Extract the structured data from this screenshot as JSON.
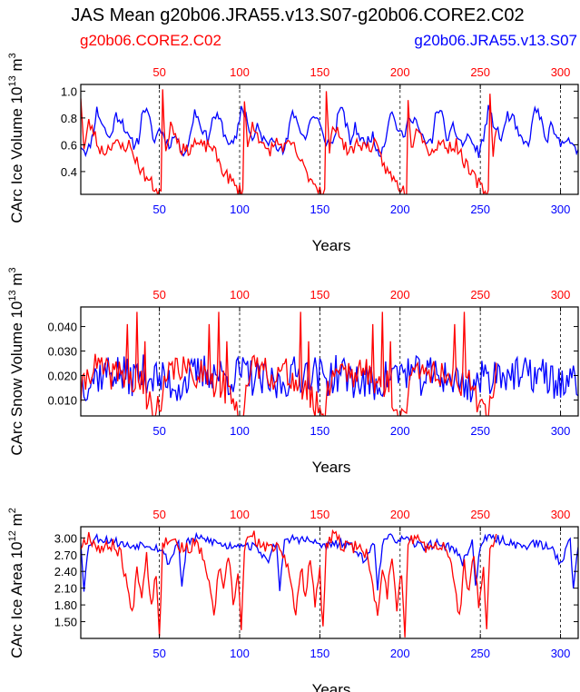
{
  "title": "JAS Mean g20b06.JRA55.v13.S07-g20b06.CORE2.C02",
  "legend": {
    "left": {
      "label": "g20b06.CORE2.C02",
      "color": "#ff0000"
    },
    "right": {
      "label": "g20b06.JRA55.v13.S07",
      "color": "#0000ff"
    }
  },
  "chart_data": [
    {
      "type": "line",
      "ylabel": "CArc Ice Volume",
      "ylabel_unit": "10",
      "ylabel_exp": "13",
      "ylabel_tail": "m",
      "ylabel_tail_exp": "3",
      "xlabel": "Years",
      "ylim": [
        0.23,
        1.05
      ],
      "yticks": [
        {
          "v": 0.4,
          "label": "0.4"
        },
        {
          "v": 0.6,
          "label": "0.6"
        },
        {
          "v": 0.8,
          "label": "0.8"
        },
        {
          "v": 1.0,
          "label": "1.0"
        }
      ],
      "xlim": [
        1,
        311
      ],
      "xticks": [
        {
          "v": 50,
          "label": "50"
        },
        {
          "v": 100,
          "label": "100"
        },
        {
          "v": 150,
          "label": "150"
        },
        {
          "v": 200,
          "label": "200"
        },
        {
          "v": 250,
          "label": "250"
        },
        {
          "v": 300,
          "label": "300"
        }
      ],
      "series": [
        {
          "name": "g20b06.JRA55.v13.S07",
          "color": "#0000ff",
          "period": 61,
          "length": 311,
          "anchors": [
            [
              0,
              0.6
            ],
            [
              4,
              0.54
            ],
            [
              7,
              0.65
            ],
            [
              10,
              0.86
            ],
            [
              14,
              0.74
            ],
            [
              18,
              0.64
            ],
            [
              22,
              0.82
            ],
            [
              26,
              0.78
            ],
            [
              29,
              0.66
            ],
            [
              33,
              0.6
            ],
            [
              36,
              0.64
            ],
            [
              39,
              0.88
            ],
            [
              42,
              0.82
            ],
            [
              46,
              0.62
            ],
            [
              49,
              0.73
            ],
            [
              52,
              0.66
            ],
            [
              55,
              0.6
            ],
            [
              58,
              0.66
            ]
          ],
          "noise": 0.04,
          "seed": 11
        },
        {
          "name": "g20b06.CORE2.C02",
          "color": "#ff0000",
          "period": 51,
          "length": 260,
          "anchors": [
            [
              0,
              0.97
            ],
            [
              2,
              0.56
            ],
            [
              5,
              0.76
            ],
            [
              8,
              0.7
            ],
            [
              11,
              0.58
            ],
            [
              15,
              0.55
            ],
            [
              20,
              0.62
            ],
            [
              25,
              0.58
            ],
            [
              30,
              0.6
            ],
            [
              34,
              0.5
            ],
            [
              38,
              0.4
            ],
            [
              42,
              0.34
            ],
            [
              46,
              0.28
            ],
            [
              49,
              0.25
            ]
          ],
          "noise": 0.05,
          "seed": 23
        }
      ]
    },
    {
      "type": "line",
      "ylabel": "CArc Snow Volume",
      "ylabel_unit": "10",
      "ylabel_exp": "13",
      "ylabel_tail": "m",
      "ylabel_tail_exp": "3",
      "xlabel": "Years",
      "ylim": [
        0.0035,
        0.048
      ],
      "yticks": [
        {
          "v": 0.01,
          "label": "0.010"
        },
        {
          "v": 0.02,
          "label": "0.020"
        },
        {
          "v": 0.03,
          "label": "0.030"
        },
        {
          "v": 0.04,
          "label": "0.040"
        }
      ],
      "xlim": [
        1,
        311
      ],
      "xticks": [
        {
          "v": 50,
          "label": "50"
        },
        {
          "v": 100,
          "label": "100"
        },
        {
          "v": 150,
          "label": "150"
        },
        {
          "v": 200,
          "label": "200"
        },
        {
          "v": 250,
          "label": "250"
        },
        {
          "v": 300,
          "label": "300"
        }
      ],
      "series": [
        {
          "name": "g20b06.JRA55.v13.S07",
          "color": "#0000ff",
          "period": 61,
          "length": 311,
          "anchors": [
            [
              0,
              0.016
            ],
            [
              10,
              0.02
            ],
            [
              20,
              0.022
            ],
            [
              30,
              0.019
            ],
            [
              40,
              0.021
            ],
            [
              50,
              0.018
            ],
            [
              60,
              0.016
            ]
          ],
          "noise": 0.008,
          "seed": 37
        },
        {
          "name": "g20b06.CORE2.C02",
          "color": "#ff0000",
          "period": 51,
          "length": 260,
          "anchors": [
            [
              0,
              0.012
            ],
            [
              5,
              0.022
            ],
            [
              10,
              0.024
            ],
            [
              18,
              0.02
            ],
            [
              25,
              0.022
            ],
            [
              30,
              0.018
            ],
            [
              36,
              0.014
            ],
            [
              42,
              0.01
            ],
            [
              46,
              0.007
            ],
            [
              50,
              0.005
            ]
          ],
          "noise": 0.006,
          "seed": 41,
          "spikes": [
            [
              29,
              0.041
            ],
            [
              35,
              0.046
            ],
            [
              38,
              0.022
            ],
            [
              40,
              0.034
            ]
          ]
        }
      ]
    },
    {
      "type": "line",
      "ylabel": "CArc Ice Area",
      "ylabel_unit": "10",
      "ylabel_exp": "12",
      "ylabel_tail": "m",
      "ylabel_tail_exp": "2",
      "xlabel": "Years",
      "ylim": [
        1.2,
        3.2
      ],
      "yticks": [
        {
          "v": 1.5,
          "label": "1.50"
        },
        {
          "v": 1.8,
          "label": "1.80"
        },
        {
          "v": 2.1,
          "label": "2.10"
        },
        {
          "v": 2.4,
          "label": "2.40"
        },
        {
          "v": 2.7,
          "label": "2.70"
        },
        {
          "v": 3.0,
          "label": "3.00"
        }
      ],
      "xlim": [
        1,
        311
      ],
      "xticks": [
        {
          "v": 50,
          "label": "50"
        },
        {
          "v": 100,
          "label": "100"
        },
        {
          "v": 150,
          "label": "150"
        },
        {
          "v": 200,
          "label": "200"
        },
        {
          "v": 250,
          "label": "250"
        },
        {
          "v": 300,
          "label": "300"
        }
      ],
      "series": [
        {
          "name": "g20b06.JRA55.v13.S07",
          "color": "#0000ff",
          "period": 61,
          "length": 311,
          "anchors": [
            [
              0,
              2.95
            ],
            [
              2,
              2.1
            ],
            [
              5,
              2.9
            ],
            [
              10,
              3.0
            ],
            [
              20,
              2.95
            ],
            [
              30,
              2.85
            ],
            [
              40,
              2.9
            ],
            [
              50,
              2.8
            ],
            [
              55,
              2.55
            ],
            [
              60,
              2.9
            ]
          ],
          "noise": 0.08,
          "seed": 53
        },
        {
          "name": "g20b06.CORE2.C02",
          "color": "#ff0000",
          "period": 51,
          "length": 260,
          "anchors": [
            [
              0,
              2.85
            ],
            [
              5,
              3.05
            ],
            [
              10,
              2.85
            ],
            [
              15,
              2.8
            ],
            [
              20,
              2.9
            ],
            [
              25,
              2.7
            ],
            [
              28,
              2.3
            ],
            [
              32,
              1.6
            ],
            [
              35,
              2.5
            ],
            [
              38,
              2.0
            ],
            [
              41,
              2.7
            ],
            [
              44,
              1.8
            ],
            [
              47,
              2.4
            ],
            [
              49,
              1.3
            ],
            [
              51,
              2.85
            ]
          ],
          "noise": 0.12,
          "seed": 67
        }
      ]
    }
  ]
}
